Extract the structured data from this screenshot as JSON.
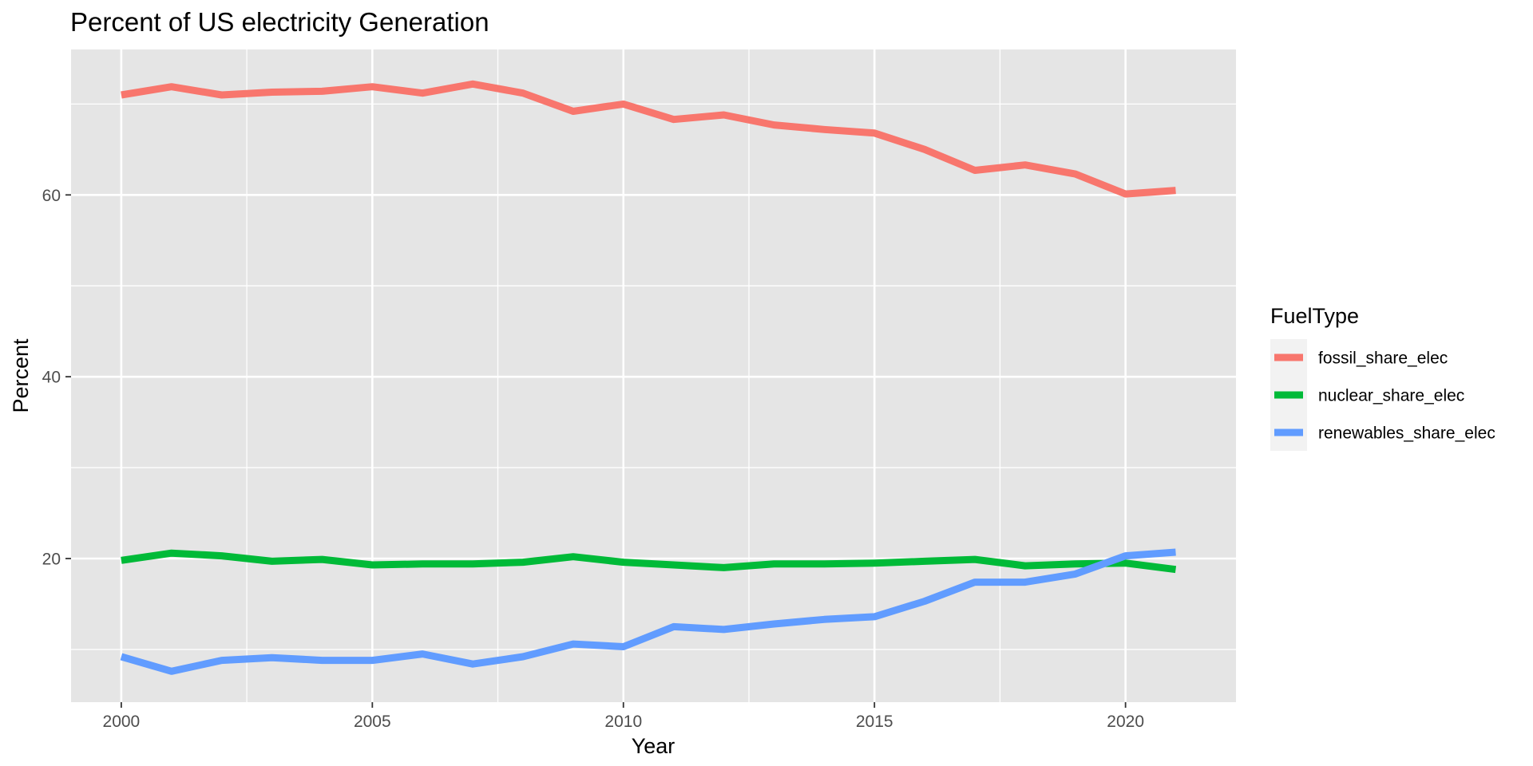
{
  "chart_data": {
    "type": "line",
    "title": "Percent of US electricity Generation",
    "xlabel": "Year",
    "ylabel": "Percent",
    "xlim": [
      1999,
      2022.2
    ],
    "ylim": [
      4.2,
      76.0
    ],
    "x_ticks": [
      2000,
      2005,
      2010,
      2015,
      2020
    ],
    "x_tick_labels": [
      "2000",
      "2005",
      "2010",
      "2015",
      "2020"
    ],
    "y_ticks": [
      20,
      40,
      60
    ],
    "y_tick_labels": [
      "20",
      "40",
      "60"
    ],
    "grid": true,
    "legend_title": "FuelType",
    "legend_position": "right",
    "x": [
      2000,
      2001,
      2002,
      2003,
      2004,
      2005,
      2006,
      2007,
      2008,
      2009,
      2010,
      2011,
      2012,
      2013,
      2014,
      2015,
      2016,
      2017,
      2018,
      2019,
      2020,
      2021
    ],
    "series": [
      {
        "name": "fossil_share_elec",
        "color": "#F8766D",
        "values": [
          71.0,
          71.9,
          71.0,
          71.3,
          71.4,
          71.9,
          71.2,
          72.2,
          71.2,
          69.2,
          70.0,
          68.3,
          68.8,
          67.7,
          67.2,
          66.8,
          65.0,
          62.7,
          63.3,
          62.3,
          60.1,
          60.5
        ]
      },
      {
        "name": "nuclear_share_elec",
        "color": "#00BA38",
        "values": [
          19.8,
          20.6,
          20.3,
          19.7,
          19.9,
          19.3,
          19.4,
          19.4,
          19.6,
          20.2,
          19.6,
          19.3,
          19.0,
          19.4,
          19.4,
          19.5,
          19.7,
          19.9,
          19.2,
          19.4,
          19.5,
          18.8
        ]
      },
      {
        "name": "renewables_share_elec",
        "color": "#619CFF",
        "values": [
          9.2,
          7.6,
          8.8,
          9.1,
          8.8,
          8.8,
          9.5,
          8.4,
          9.2,
          10.6,
          10.3,
          12.5,
          12.2,
          12.8,
          13.3,
          13.6,
          15.3,
          17.4,
          17.4,
          18.3,
          20.3,
          20.7
        ]
      }
    ]
  }
}
